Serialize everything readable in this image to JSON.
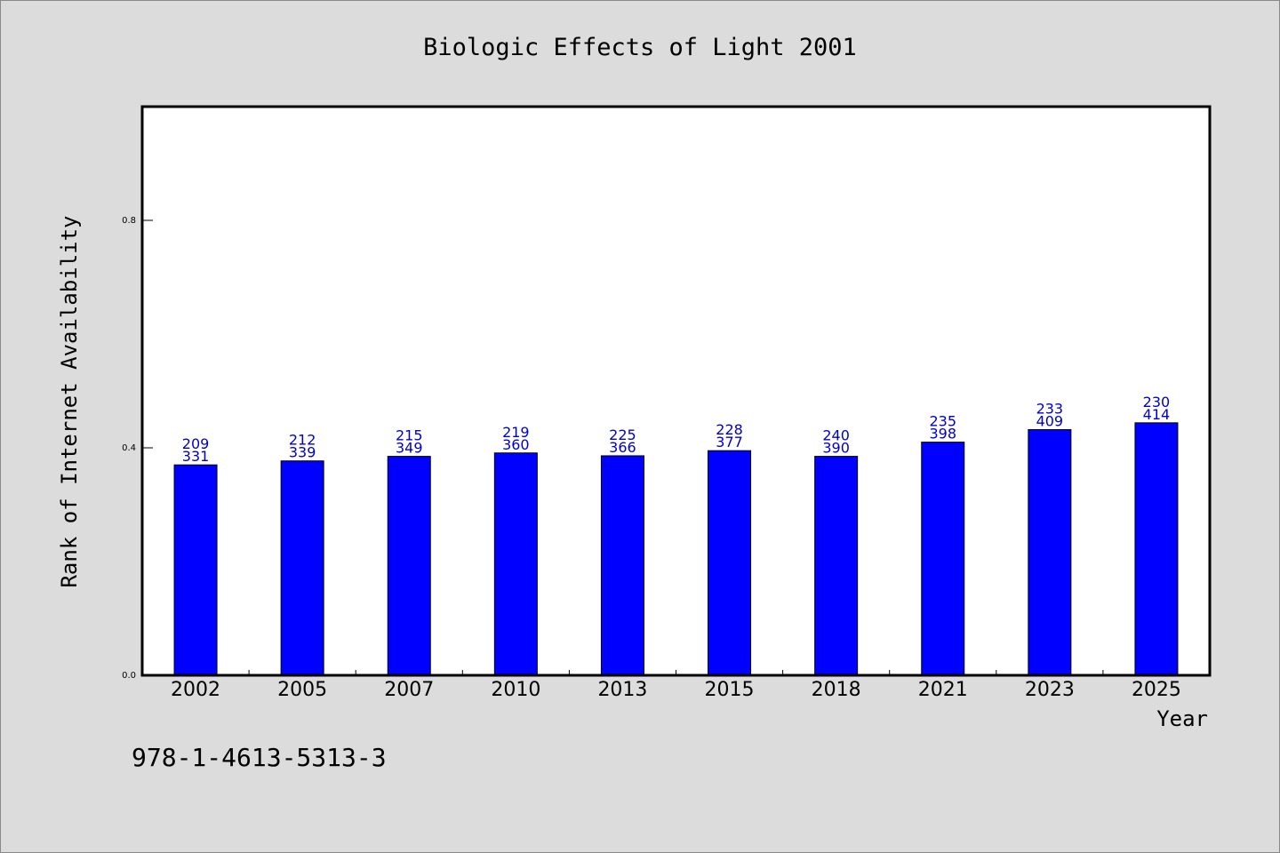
{
  "chart_data": {
    "type": "bar",
    "title": "Biologic Effects of Light 2001",
    "xlabel": "Year",
    "ylabel": "Rank of Internet Availability",
    "ylim": [
      0.0,
      1.0
    ],
    "yticks": [
      0.0,
      0.4,
      0.8
    ],
    "ytick_labels": [
      "0.0",
      "0.4",
      "0.8"
    ],
    "grid": false,
    "categories": [
      "2002",
      "2005",
      "2007",
      "2010",
      "2013",
      "2015",
      "2018",
      "2021",
      "2023",
      "2025"
    ],
    "values": [
      0.37,
      0.377,
      0.385,
      0.391,
      0.386,
      0.395,
      0.385,
      0.41,
      0.432,
      0.444
    ],
    "label_top": [
      "209",
      "212",
      "215",
      "219",
      "225",
      "228",
      "240",
      "235",
      "233",
      "230"
    ],
    "label_bottom": [
      "331",
      "339",
      "349",
      "360",
      "366",
      "377",
      "390",
      "398",
      "409",
      "414"
    ],
    "bar_color": "#0000ff",
    "label_color": "#0000cc"
  },
  "footer": {
    "code": "978-1-4613-5313-3"
  }
}
